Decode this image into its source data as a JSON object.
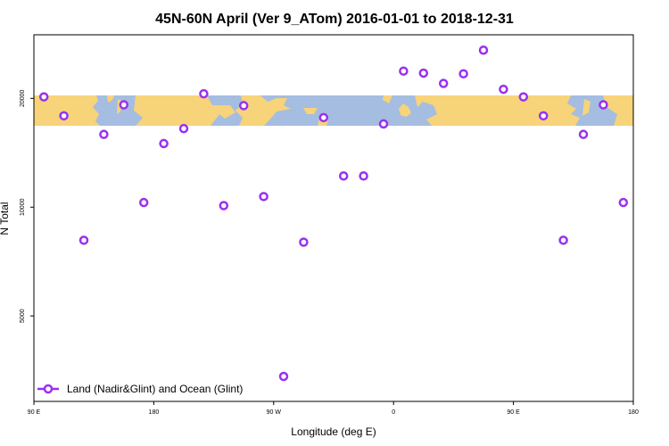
{
  "chart_data": {
    "type": "scatter",
    "title": "45N-60N April (Ver 9_ATom)   2016-01-01 to 2018-12-31",
    "xlabel": "Longitude (deg E)",
    "ylabel": "N Total",
    "x_tick_labels": [
      "90 E",
      "180",
      "90 W",
      "0",
      "90 E",
      "180"
    ],
    "x_tick_values": [
      90,
      180,
      270,
      360,
      450,
      540
    ],
    "xlim": [
      90,
      540
    ],
    "y_tick_labels": [
      "5000",
      "10000",
      "20000"
    ],
    "y_tick_values": [
      5000,
      10000,
      20000
    ],
    "ylim": [
      2900,
      30000
    ],
    "y_scale": "log",
    "grid": false,
    "legend_position": "bottom-left",
    "series": [
      {
        "name": "Land (Nadir&Glint) and Ocean (Glint)",
        "color": "#9b30f0",
        "marker": "open-circle",
        "x": [
          97.5,
          112.5,
          127.5,
          142.5,
          157.5,
          172.5,
          187.5,
          202.5,
          217.5,
          232.5,
          247.5,
          262.5,
          277.5,
          292.5,
          307.5,
          322.5,
          337.5,
          352.5,
          367.5,
          382.5,
          397.5,
          412.5,
          427.5,
          442.5,
          457.5,
          472.5,
          487.5,
          502.5,
          517.5,
          532.5
        ],
        "y": [
          20200,
          17900,
          8100,
          15900,
          19200,
          10300,
          15000,
          16500,
          20600,
          10100,
          19100,
          10700,
          3400,
          8000,
          17700,
          12200,
          12200,
          17000,
          23800,
          23500,
          22000,
          23400,
          27200,
          21200,
          20200,
          17900,
          8100,
          15900,
          19200,
          10300
        ]
      }
    ],
    "map_band": {
      "lat_range": "45N-60N",
      "ocean_color": "#a5bde0",
      "land_color": "#f7d37a"
    }
  }
}
